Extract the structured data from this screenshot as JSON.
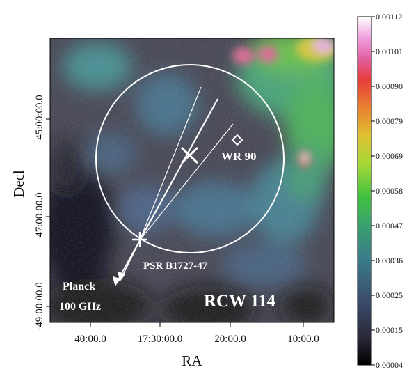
{
  "chart_data": {
    "type": "heatmap",
    "title": "",
    "xlabel": "RA",
    "ylabel": "Decl",
    "x_ticks": [
      "40:00.0",
      "17:30:00.0",
      "20:00.0",
      "10:00.0"
    ],
    "y_ticks": [
      "-45:00:00.0",
      "-47:00:00.0",
      "-49:00:00.0"
    ],
    "colorbar": {
      "ticks": [
        "0.00112",
        "0.00101",
        "0.00090",
        "0.00079",
        "0.00069",
        "0.00058",
        "0.00047",
        "0.00036",
        "0.00025",
        "0.00015",
        "0.00004"
      ],
      "range": [
        4e-05,
        0.00112
      ],
      "colormap": [
        "#000000",
        "#2a2a3a",
        "#3a4a6a",
        "#3a7a8a",
        "#3aa070",
        "#40c040",
        "#a8d838",
        "#e0c030",
        "#e88030",
        "#e83c3c",
        "#e060a0",
        "#f0a0e0",
        "#ffffff"
      ]
    },
    "annotations": {
      "region_label": "RCW 114",
      "instrument_label_line1": "Planck",
      "instrument_label_line2": "100 GHz",
      "pulsar_label": "PSR B1727-47",
      "star_label": "WR 90"
    },
    "markers": [
      {
        "name": "PSR B1727-47",
        "shape": "plus",
        "color": "#ffffff"
      },
      {
        "name": "geometric center",
        "shape": "x",
        "color": "#ffffff"
      },
      {
        "name": "WR 90",
        "shape": "diamond",
        "color": "#ffffff"
      }
    ],
    "overlays": {
      "circle": {
        "color": "#ffffff",
        "description": "circle encompassing RCW 114"
      },
      "proper_motion_arrows": 2,
      "trajectory_lines": 3
    }
  }
}
